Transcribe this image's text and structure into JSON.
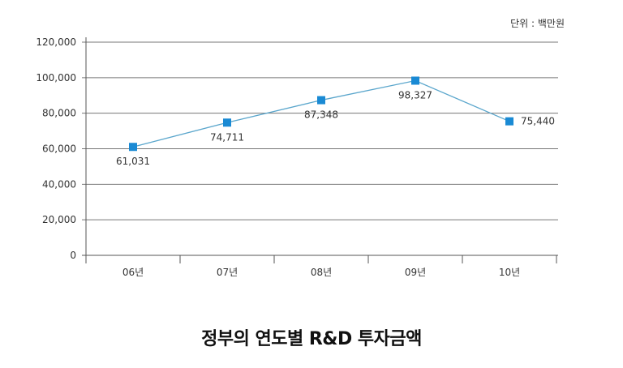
{
  "chart_data": {
    "type": "line",
    "title": "정부의 연도별 R&D 투자금액",
    "unit_label": "단위 : 백만원",
    "categories": [
      "06년",
      "07년",
      "08년",
      "09년",
      "10년"
    ],
    "series": [
      {
        "name": "R&D 투자금액",
        "values": [
          61031,
          74711,
          87348,
          98327,
          75440
        ],
        "labels": [
          "61,031",
          "74,711",
          "87,348",
          "98,327",
          "75,440"
        ]
      }
    ],
    "yticks": [
      "0",
      "20,000",
      "40,000",
      "60,000",
      "80,000",
      "100,000",
      "120,000"
    ],
    "ylim": [
      0,
      120000
    ],
    "grid": true,
    "colors": {
      "line": "#5aa6cc",
      "marker": "#1a8ad4",
      "grid": "#777777"
    }
  }
}
